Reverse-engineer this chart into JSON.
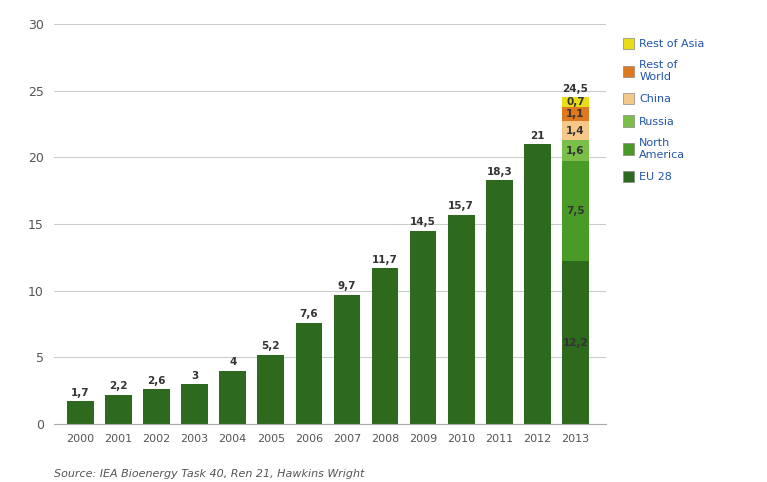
{
  "years": [
    2000,
    2001,
    2002,
    2003,
    2004,
    2005,
    2006,
    2007,
    2008,
    2009,
    2010,
    2011,
    2012,
    2013
  ],
  "single_bar_values": [
    1.7,
    2.2,
    2.6,
    3.0,
    4.0,
    5.2,
    7.6,
    9.7,
    11.7,
    14.5,
    15.7,
    18.3,
    21.0,
    null
  ],
  "single_bar_labels": [
    "1,7",
    "2,2",
    "2,6",
    "3",
    "4",
    "5,2",
    "7,6",
    "9,7",
    "11,7",
    "14,5",
    "15,7",
    "18,3",
    "21",
    null
  ],
  "single_bar_color": "#2d6a1e",
  "stacked_2013": {
    "EU 28": 12.2,
    "North America": 7.5,
    "Russia": 1.6,
    "China": 1.4,
    "Rest of World": 1.1,
    "Rest of Asia": 0.7
  },
  "stacked_2013_labels": [
    "12,2",
    "7,5",
    "1,6",
    "1,4",
    "1,1",
    "0,7"
  ],
  "stacked_colors": [
    "#2d6a1e",
    "#4a9a28",
    "#7bbf48",
    "#f5c88a",
    "#e07820",
    "#e8de18"
  ],
  "total_2013_label": "24,5",
  "ylim": [
    0,
    30
  ],
  "yticks": [
    0,
    5,
    10,
    15,
    20,
    25,
    30
  ],
  "source_text": "Source: IEA Bioenergy Task 40, Ren 21, Hawkins Wright",
  "legend_labels": [
    "Rest of Asia",
    "Rest of\nWorld",
    "China",
    "Russia",
    "North\nAmerica",
    "EU 28"
  ],
  "legend_colors": [
    "#e8de18",
    "#e07820",
    "#f5c88a",
    "#7bbf48",
    "#4a9a28",
    "#2d6a1e"
  ],
  "background_color": "#ffffff",
  "bar_width": 0.7,
  "figsize": [
    7.67,
    4.82
  ],
  "dpi": 100
}
